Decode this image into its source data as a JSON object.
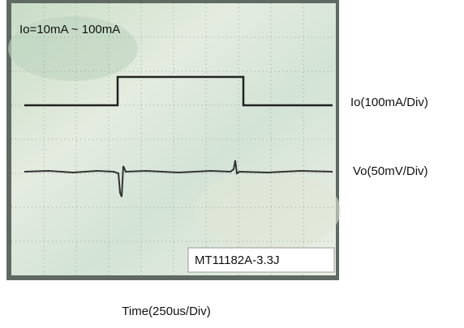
{
  "scope": {
    "title": "Io=10mA ~ 100mA",
    "traces": [
      {
        "label": "Io(100mA/Div)"
      },
      {
        "label": "Vo(50mV/Div)"
      }
    ],
    "badge": "MT11182A-3.3J",
    "x_label": "Time(250us/Div)"
  }
}
